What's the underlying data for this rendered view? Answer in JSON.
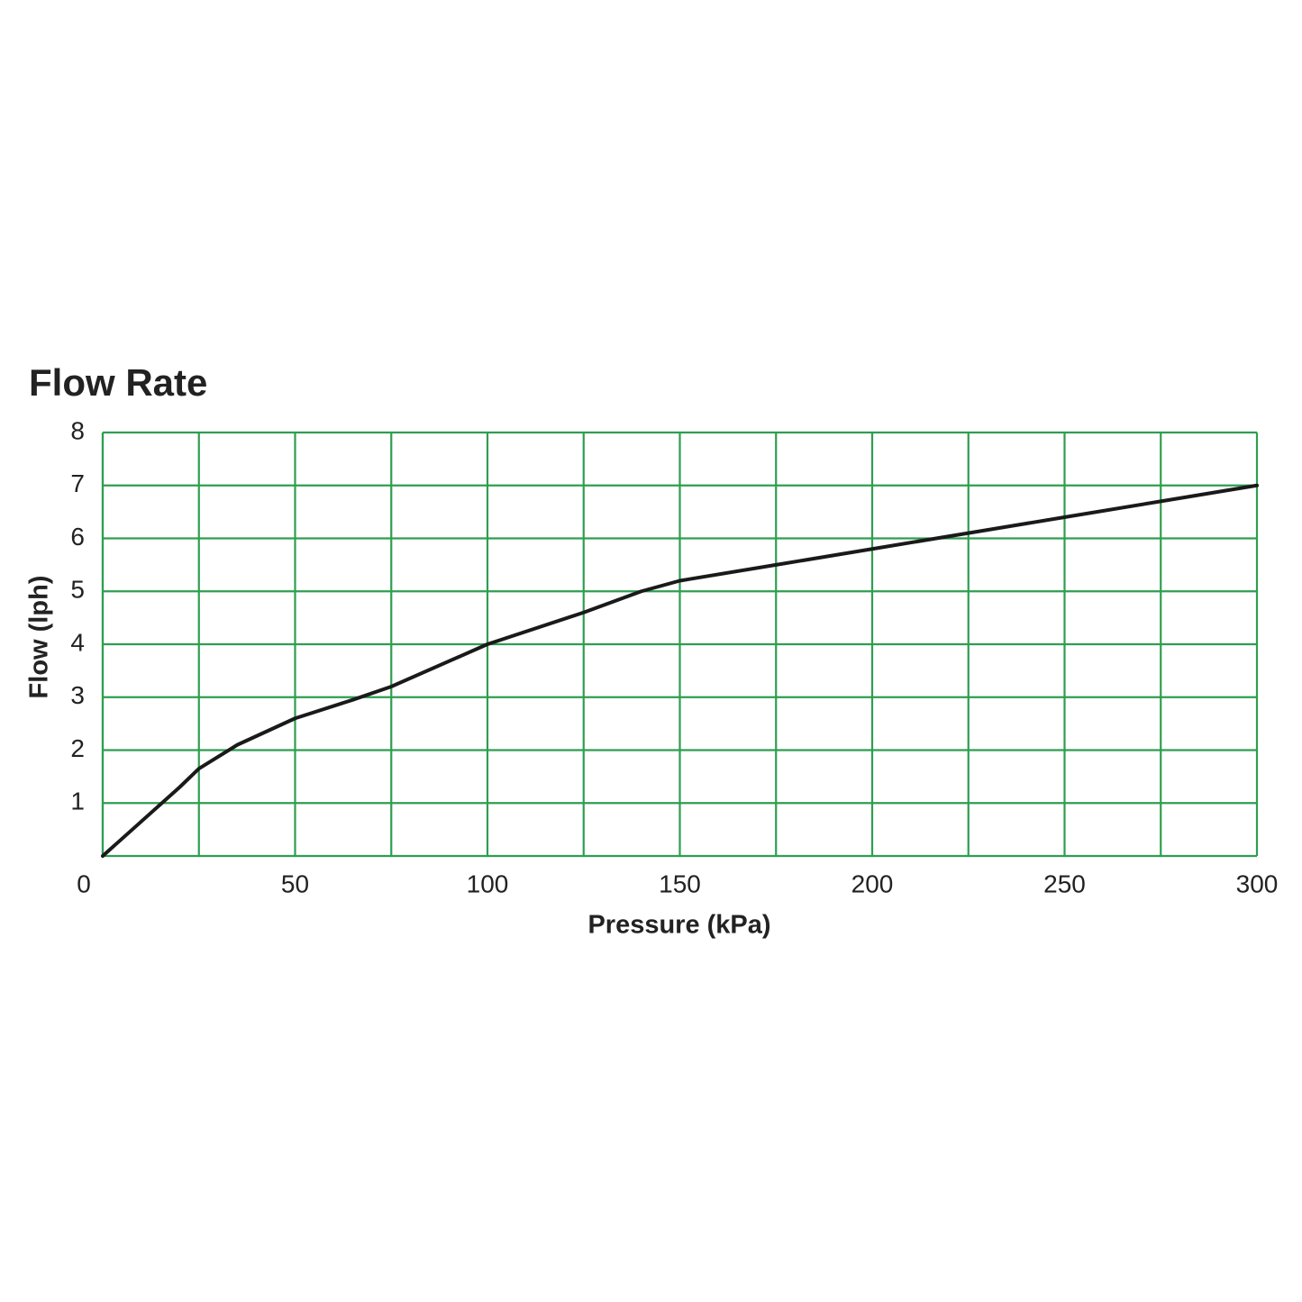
{
  "chart_data": {
    "type": "line",
    "title": "Flow Rate",
    "x_label": "Pressure (kPa)",
    "y_label": "Flow (lph)",
    "x": [
      0,
      10,
      20,
      25,
      35,
      50,
      65,
      75,
      100,
      125,
      140,
      150,
      175,
      200,
      225,
      250,
      275,
      300
    ],
    "series": [
      {
        "name": "Flow",
        "color": "#1a1a1a",
        "values": [
          0,
          0.65,
          1.3,
          1.65,
          2.1,
          2.6,
          2.95,
          3.2,
          4.0,
          4.6,
          5.0,
          5.2,
          5.5,
          5.8,
          6.1,
          6.4,
          6.7,
          7.0
        ]
      }
    ],
    "xlim": [
      0,
      300
    ],
    "xticks": [
      0,
      50,
      100,
      150,
      200,
      250,
      300
    ],
    "x_minor_ticks": [
      25,
      75,
      125,
      175,
      225,
      275
    ],
    "ylim": [
      0,
      8
    ],
    "yticks": [
      1,
      2,
      3,
      4,
      5,
      6,
      7,
      8
    ],
    "grid": true,
    "grid_color": "#2e9e4f"
  }
}
